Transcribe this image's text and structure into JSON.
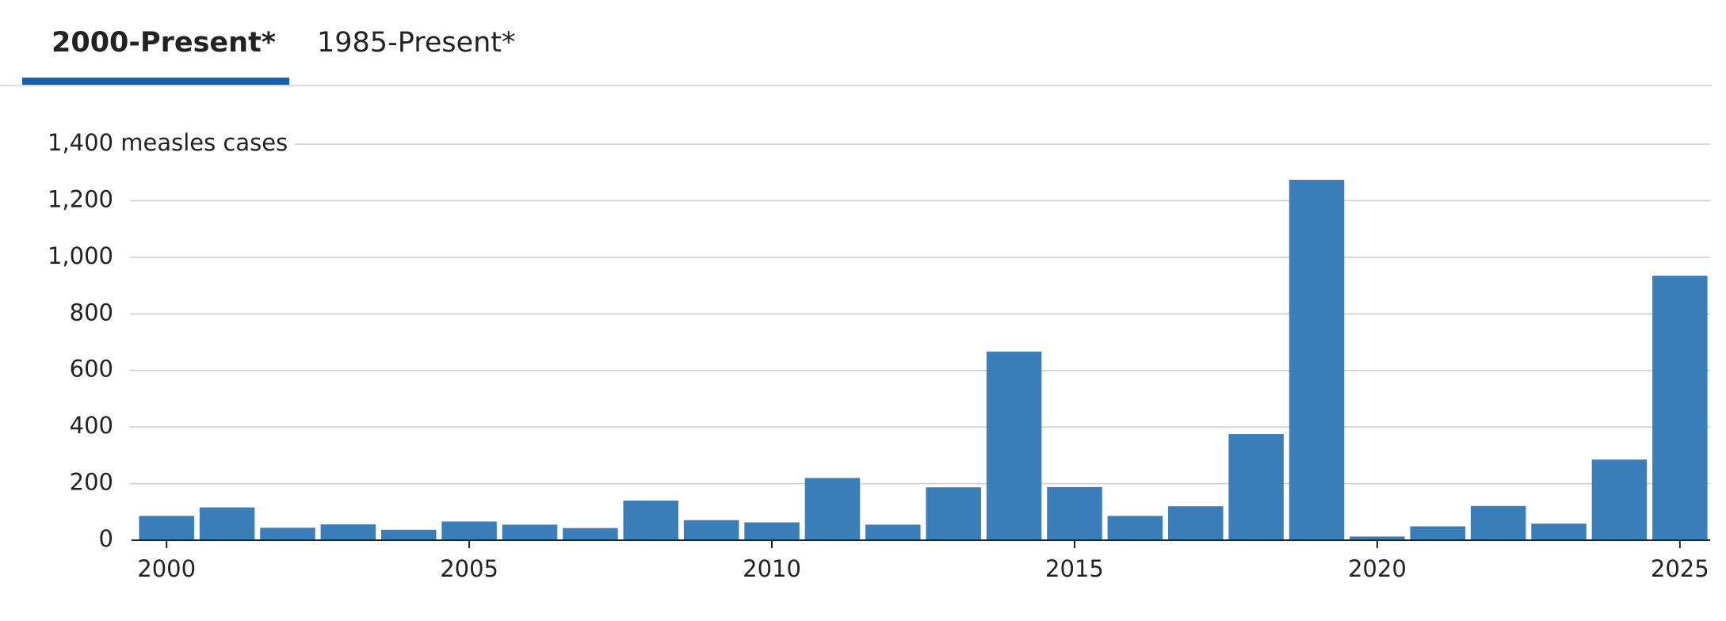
{
  "tabs": [
    "2000-Present*",
    "1985-Present*"
  ],
  "chart_data": {
    "type": "bar",
    "x": [
      2000,
      2001,
      2002,
      2003,
      2004,
      2005,
      2006,
      2007,
      2008,
      2009,
      2010,
      2011,
      2012,
      2013,
      2014,
      2015,
      2016,
      2017,
      2018,
      2019,
      2020,
      2021,
      2022,
      2023,
      2024,
      2025
    ],
    "values": [
      86,
      116,
      44,
      56,
      37,
      66,
      55,
      43,
      140,
      71,
      63,
      220,
      55,
      187,
      667,
      188,
      86,
      120,
      375,
      1274,
      13,
      49,
      121,
      59,
      285,
      935
    ],
    "color": "#3a7fba",
    "xlim": [
      1999.5,
      2025.5
    ],
    "xticks": [
      2000,
      2005,
      2010,
      2015,
      2020,
      2025
    ],
    "ylim": [
      0,
      1400
    ],
    "yticks": [
      0,
      200,
      400,
      600,
      800,
      {
        "value": 1000,
        "label": "1,000"
      },
      {
        "value": 1200,
        "label": "1,200"
      },
      {
        "value": 1400,
        "label": "1,400 measles cases"
      }
    ],
    "grid": true
  }
}
